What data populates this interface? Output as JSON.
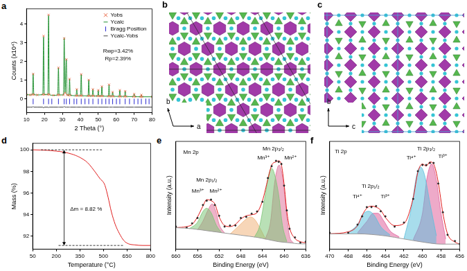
{
  "chart_data": [
    {
      "title": "a",
      "type": "line",
      "x_label": "2 Theta (°)",
      "y_label": "Counts (x10⁴)",
      "xlim": [
        10,
        80
      ],
      "xticks": [
        10,
        20,
        30,
        40,
        50,
        60,
        70,
        80
      ],
      "ylim": [
        -0.75,
        4.8
      ],
      "yticks": [
        0,
        1,
        2,
        3,
        4
      ],
      "grid": false,
      "legend": "upper right",
      "x": [
        10,
        12,
        13.3,
        13.7,
        14.1,
        16,
        19.1,
        19.5,
        19.9,
        21.9,
        22.3,
        22.7,
        25,
        27.4,
        27.8,
        28.2,
        30.6,
        31.0,
        31.5,
        32.2,
        32.6,
        33.6,
        34.0,
        34.4,
        37.6,
        38.0,
        38.4,
        40.1,
        40.5,
        40.9,
        44.3,
        44.7,
        45.1,
        46.6,
        47.0,
        47.4,
        49.6,
        50,
        50.4,
        51.6,
        52,
        52.4,
        55.6,
        56,
        56.4,
        57.6,
        58,
        58.4,
        61.6,
        62,
        62.4,
        64.6,
        65,
        65.4,
        69.6,
        70,
        70.4,
        73.6,
        74,
        74.4,
        80
      ],
      "series": [
        {
          "name": "Yobs",
          "type": "scatter",
          "color": "#e8603c",
          "marker": "x",
          "line_style": "none",
          "values": [
            0.22,
            0.2,
            0.22,
            1.32,
            0.22,
            0.2,
            0.22,
            3.35,
            0.22,
            0.22,
            4.48,
            0.22,
            0.18,
            0.2,
            1.65,
            0.2,
            0.2,
            3.22,
            0.3,
            2.1,
            0.2,
            0.18,
            1.05,
            0.18,
            0.16,
            0.5,
            0.16,
            0.16,
            1.3,
            0.16,
            0.15,
            1.0,
            0.15,
            0.15,
            0.5,
            0.15,
            0.14,
            0.45,
            0.14,
            0.14,
            0.65,
            0.14,
            0.13,
            0.75,
            0.13,
            0.13,
            0.35,
            0.13,
            0.12,
            0.45,
            0.12,
            0.12,
            0.4,
            0.12,
            0.11,
            0.25,
            0.11,
            0.1,
            0.2,
            0.1,
            0.1
          ]
        },
        {
          "name": "Ycalc",
          "type": "line",
          "color": "#1f8f2f",
          "marker": "none",
          "line_style": "solid",
          "values": [
            0.22,
            0.2,
            0.22,
            1.35,
            0.22,
            0.2,
            0.22,
            3.3,
            0.22,
            0.22,
            4.45,
            0.22,
            0.18,
            0.2,
            1.65,
            0.2,
            0.2,
            3.25,
            0.3,
            2.1,
            0.2,
            0.18,
            1.05,
            0.18,
            0.16,
            0.5,
            0.16,
            0.16,
            1.3,
            0.16,
            0.15,
            1.0,
            0.15,
            0.15,
            0.5,
            0.15,
            0.14,
            0.45,
            0.14,
            0.14,
            0.65,
            0.14,
            0.13,
            0.75,
            0.13,
            0.13,
            0.35,
            0.13,
            0.12,
            0.45,
            0.12,
            0.12,
            0.4,
            0.12,
            0.11,
            0.25,
            0.11,
            0.1,
            0.2,
            0.1,
            0.1
          ]
        },
        {
          "name": "Bragg Position",
          "type": "scatter",
          "color": "#2b2bd0",
          "marker": "|",
          "line_style": "none",
          "x": [
            13.7,
            19.5,
            22.3,
            24.1,
            27.8,
            31.0,
            32.2,
            34.0,
            36.5,
            38.0,
            40.5,
            42.6,
            44.7,
            47.0,
            50.0,
            52.0,
            54.2,
            56.0,
            58.0,
            60.1,
            62.0,
            65.0,
            67.4,
            70.0,
            72.1,
            74.0,
            76.5,
            78.3
          ],
          "values": [
            -0.15,
            -0.15,
            -0.15,
            -0.15,
            -0.15,
            -0.15,
            -0.15,
            -0.15,
            -0.15,
            -0.15,
            -0.15,
            -0.15,
            -0.15,
            -0.15,
            -0.15,
            -0.15,
            -0.15,
            -0.15,
            -0.15,
            -0.15,
            -0.15,
            -0.15,
            -0.15,
            -0.15,
            -0.15,
            -0.15,
            -0.15,
            -0.15
          ]
        },
        {
          "name": "Ycalc-Yobs",
          "type": "line",
          "color": "#444444",
          "marker": "none",
          "line_style": "solid",
          "values": [
            -0.45,
            -0.45,
            -0.45,
            -0.42,
            -0.45,
            -0.45,
            -0.45,
            -0.5,
            -0.45,
            -0.45,
            -0.48,
            -0.45,
            -0.45,
            -0.45,
            -0.45,
            -0.45,
            -0.45,
            -0.42,
            -0.45,
            -0.45,
            -0.45,
            -0.45,
            -0.45,
            -0.45,
            -0.45,
            -0.45,
            -0.45,
            -0.45,
            -0.45,
            -0.45,
            -0.45,
            -0.45,
            -0.45,
            -0.45,
            -0.45,
            -0.45,
            -0.45,
            -0.45,
            -0.45,
            -0.45,
            -0.45,
            -0.45,
            -0.45,
            -0.45,
            -0.45,
            -0.45,
            -0.45,
            -0.45,
            -0.45,
            -0.45,
            -0.45,
            -0.45,
            -0.45,
            -0.45,
            -0.45,
            -0.45,
            -0.45,
            -0.45,
            -0.45,
            -0.45,
            -0.45
          ]
        }
      ],
      "annotations": [
        {
          "text": "Rwp=3.42%",
          "x": 61,
          "y": 2.55
        },
        {
          "text": "Rp=2.39%",
          "x": 61,
          "y": 2.15
        }
      ]
    },
    {
      "title": "d",
      "type": "line",
      "x_label": "Temperature (°C)",
      "y_label": "Mass (%)",
      "xlim": [
        50,
        800
      ],
      "xticks": [
        50,
        200,
        350,
        500,
        650,
        800
      ],
      "ylim": [
        90.8,
        100.6
      ],
      "yticks": [
        92,
        94,
        96,
        98,
        100
      ],
      "grid": false,
      "x": [
        50,
        100,
        150,
        200,
        250,
        300,
        350,
        400,
        450,
        480,
        500,
        510,
        530,
        550,
        575,
        600,
        630,
        660,
        700,
        750,
        800
      ],
      "series": [
        {
          "type": "line",
          "color": "#e02020",
          "line_style": "solid",
          "values": [
            100,
            99.98,
            99.95,
            99.88,
            99.78,
            99.6,
            99.3,
            98.8,
            97.9,
            97.3,
            97.0,
            96.7,
            95.6,
            94.3,
            93.1,
            92.3,
            91.6,
            91.3,
            91.2,
            91.15,
            91.15
          ]
        }
      ],
      "annotations": [
        {
          "text": "Δm = 8.82 %",
          "x": 390,
          "y": 94.5
        }
      ]
    },
    {
      "title": "e",
      "type": "line",
      "x_label": "Binding Energy (eV)",
      "y_label": "Intensity (a.u.)",
      "xlim": [
        660,
        636
      ],
      "xticks": [
        660,
        656,
        652,
        648,
        644,
        640,
        636
      ],
      "ylim": [
        10,
        110
      ],
      "grid": false,
      "tick_labels": "x",
      "series": [
        {
          "type": "line",
          "color": "#999999",
          "line_style": "solid",
          "x": [
            660,
            657,
            654,
            651,
            648,
            645,
            643,
            641,
            639,
            637,
            636
          ],
          "values": [
            30,
            29,
            27,
            25,
            23,
            21,
            19,
            17,
            16,
            15,
            15
          ]
        },
        {
          "type": "scatter",
          "color": "#222222",
          "marker": "o",
          "line_style": "none",
          "x": [
            660,
            658,
            657,
            656,
            655,
            654.3,
            653.5,
            652.8,
            652,
            651,
            650,
            649,
            648,
            647,
            646,
            645,
            644,
            643,
            642.3,
            641.5,
            641,
            640.5,
            640,
            639.5,
            639,
            638,
            637,
            636
          ],
          "values": [
            31,
            30,
            34,
            39,
            51,
            55,
            56,
            51,
            41,
            31,
            32,
            32,
            39,
            40,
            43,
            45,
            54,
            76,
            87,
            92,
            91,
            89,
            69,
            46,
            29,
            21,
            16,
            17
          ]
        },
        {
          "type": "line",
          "color": "#e01818",
          "line_style": "solid",
          "x": [
            660,
            658,
            657,
            656,
            655,
            654.3,
            653.5,
            652.8,
            652,
            651,
            650,
            649,
            648,
            647,
            646,
            645,
            644,
            643,
            642.3,
            641.5,
            641,
            640.5,
            640,
            639.5,
            639,
            638,
            637,
            636
          ],
          "values": [
            30,
            31,
            33,
            40,
            50,
            56,
            55,
            52,
            40,
            32,
            31,
            33,
            38,
            41,
            42,
            44,
            55,
            75,
            88,
            91,
            92,
            88,
            70,
            45,
            30,
            20,
            17,
            16
          ]
        },
        {
          "type": "area",
          "color": "#7cc576",
          "x": [
            645.5,
            644.5,
            643.5,
            642.8,
            642.3,
            641.8,
            641,
            640.3,
            639.5
          ],
          "values": [
            21,
            32,
            60,
            80,
            85,
            80,
            60,
            32,
            17
          ]
        },
        {
          "type": "area",
          "color": "#e0709a",
          "x": [
            643.5,
            642.5,
            641.8,
            641.2,
            640.9,
            640.4,
            640,
            639.5,
            639,
            638.3
          ],
          "values": [
            19,
            36,
            70,
            86,
            88,
            80,
            65,
            40,
            22,
            16
          ]
        },
        {
          "type": "area",
          "color": "#f0b27a",
          "x": [
            650,
            648.5,
            647,
            646.3,
            645.5,
            644.5,
            643.5
          ],
          "values": [
            24,
            31,
            38,
            40,
            38,
            30,
            20
          ]
        },
        {
          "type": "area",
          "color": "#7cc576",
          "x": [
            657.5,
            656,
            655,
            654.3,
            653.5,
            652.5,
            651.5
          ],
          "values": [
            29,
            35,
            45,
            48,
            44,
            32,
            25
          ]
        },
        {
          "type": "area",
          "color": "#e0709a",
          "x": [
            656,
            655,
            654,
            653.3,
            652.6,
            652,
            651
          ],
          "values": [
            28,
            36,
            47,
            52,
            45,
            33,
            25
          ]
        }
      ],
      "annotations": [
        {
          "text": "Mn 2p",
          "x": 657.2,
          "y": 100
        },
        {
          "text": "Mn 2p₁/₂",
          "x": 654.3,
          "y": 74
        },
        {
          "text": "Mn³⁺",
          "x": 655.9,
          "y": 64
        },
        {
          "text": "Mn²⁺",
          "x": 652.6,
          "y": 64
        },
        {
          "text": "Mn 2p₃/₂",
          "x": 642,
          "y": 103
        },
        {
          "text": "Mn³⁺",
          "x": 643.8,
          "y": 95
        },
        {
          "text": "Mn²⁺",
          "x": 638.8,
          "y": 95
        }
      ]
    },
    {
      "title": "f",
      "type": "line",
      "x_label": "Binding Energy (eV)",
      "y_label": "Intensity (a.u.)",
      "xlim": [
        470,
        456
      ],
      "xticks": [
        470,
        468,
        466,
        464,
        462,
        460,
        458,
        456
      ],
      "ylim": [
        5,
        110
      ],
      "grid": false,
      "tick_labels": "x",
      "series": [
        {
          "type": "line",
          "color": "#999999",
          "line_style": "solid",
          "x": [
            470,
            467,
            464,
            462,
            460,
            458,
            456
          ],
          "values": [
            20,
            20,
            18,
            15,
            12,
            10,
            10
          ]
        },
        {
          "type": "scatter",
          "color": "#222222",
          "marker": "o",
          "line_style": "none",
          "x": [
            470,
            468,
            467,
            466.5,
            466,
            465.5,
            465,
            464.5,
            464,
            463,
            462,
            461,
            460.5,
            460,
            459.6,
            459.2,
            458.8,
            458.3,
            457.8,
            457.3,
            456.5,
            456
          ],
          "values": [
            21,
            21,
            29,
            37,
            46,
            46,
            47,
            42,
            37,
            27,
            31,
            54,
            81,
            87,
            87,
            89,
            89,
            69,
            41,
            19,
            13,
            10
          ]
        },
        {
          "type": "line",
          "color": "#e01818",
          "line_style": "solid",
          "x": [
            470,
            468,
            467,
            466.5,
            466,
            465.5,
            465,
            464.5,
            464,
            463,
            462,
            461,
            460.5,
            460,
            459.6,
            459.2,
            458.8,
            458.3,
            457.8,
            457.3,
            456.5,
            456
          ],
          "values": [
            20,
            22,
            28,
            38,
            45,
            47,
            46,
            43,
            36,
            28,
            30,
            55,
            80,
            88,
            86,
            90,
            88,
            70,
            40,
            20,
            12,
            10
          ]
        },
        {
          "type": "area",
          "color": "#5bbfdc",
          "x": [
            462,
            461.2,
            460.6,
            460.2,
            459.8,
            459.2,
            458.5
          ],
          "values": [
            15,
            45,
            78,
            85,
            78,
            50,
            18
          ]
        },
        {
          "type": "area",
          "color": "#e0609a",
          "x": [
            461,
            460,
            459.5,
            459,
            458.5,
            458,
            457.5
          ],
          "values": [
            14,
            40,
            75,
            88,
            72,
            40,
            15
          ]
        },
        {
          "type": "area",
          "color": "#5bbfdc",
          "x": [
            468,
            467,
            466.3,
            465.8,
            465.2,
            464.5,
            463.5
          ],
          "values": [
            21,
            29,
            40,
            42,
            38,
            27,
            19
          ]
        },
        {
          "type": "area",
          "color": "#e0609a",
          "x": [
            467,
            466,
            465.3,
            464.8,
            464.2,
            463.5,
            462.5
          ],
          "values": [
            21,
            32,
            40,
            40,
            33,
            23,
            17
          ]
        }
      ],
      "annotations": [
        {
          "text": "Ti 2p",
          "x": 468.8,
          "y": 100
        },
        {
          "text": "Ti 2p₁/₂",
          "x": 465.6,
          "y": 66
        },
        {
          "text": "Ti⁴⁺",
          "x": 467,
          "y": 56
        },
        {
          "text": "Ti³⁺",
          "x": 464,
          "y": 56
        },
        {
          "text": "Ti 2p₃/₂",
          "x": 459.6,
          "y": 103
        },
        {
          "text": "Ti⁴⁺",
          "x": 461.2,
          "y": 94
        },
        {
          "text": "Ti³⁺",
          "x": 457.8,
          "y": 95
        }
      ]
    }
  ],
  "diagrams": [
    {
      "title": "b",
      "axes": [
        "b",
        "a"
      ]
    },
    {
      "title": "c",
      "axes": [
        "b",
        "c"
      ]
    }
  ]
}
